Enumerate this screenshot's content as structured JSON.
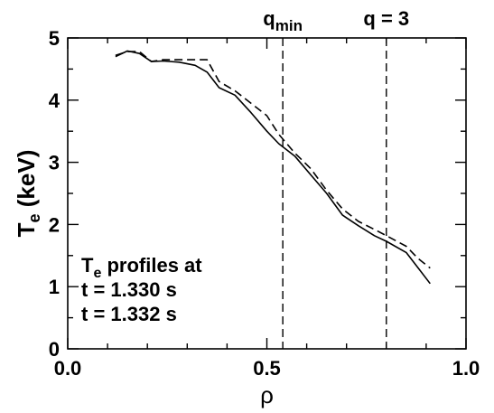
{
  "chart_data": {
    "type": "line",
    "xlabel": "ρ",
    "ylabel": {
      "main": "T",
      "sub": "e",
      "rest": " (keV)"
    },
    "xlim": [
      0.0,
      1.0
    ],
    "ylim": [
      0,
      5
    ],
    "x_ticks": [
      "0.0",
      "0.5",
      "1.0"
    ],
    "y_ticks": [
      "0",
      "1",
      "2",
      "3",
      "4",
      "5"
    ],
    "grid": false,
    "annotation": {
      "title_main": "T",
      "title_sub": "e",
      "title_rest": " profiles at",
      "line1": "t = 1.330 s",
      "line2": "t = 1.332 s"
    },
    "series": [
      {
        "name": "t = 1.330 s",
        "style": "solid",
        "color": "#000000",
        "x": [
          0.12,
          0.15,
          0.18,
          0.21,
          0.24,
          0.28,
          0.32,
          0.35,
          0.38,
          0.42,
          0.46,
          0.5,
          0.53,
          0.57,
          0.61,
          0.65,
          0.69,
          0.73,
          0.77,
          0.8,
          0.85,
          0.88,
          0.91
        ],
        "y": [
          4.7,
          4.79,
          4.75,
          4.62,
          4.63,
          4.61,
          4.56,
          4.45,
          4.2,
          4.08,
          3.8,
          3.5,
          3.3,
          3.1,
          2.8,
          2.5,
          2.15,
          1.98,
          1.82,
          1.73,
          1.55,
          1.3,
          1.05
        ]
      },
      {
        "name": "t = 1.332 s",
        "style": "dashed",
        "color": "#000000",
        "x": [
          0.12,
          0.15,
          0.18,
          0.21,
          0.24,
          0.28,
          0.32,
          0.35,
          0.38,
          0.42,
          0.46,
          0.5,
          0.53,
          0.57,
          0.61,
          0.65,
          0.69,
          0.73,
          0.77,
          0.8,
          0.85,
          0.88,
          0.91
        ],
        "y": [
          4.72,
          4.78,
          4.78,
          4.62,
          4.65,
          4.65,
          4.65,
          4.65,
          4.3,
          4.15,
          3.95,
          3.75,
          3.45,
          3.15,
          2.9,
          2.55,
          2.25,
          2.05,
          1.92,
          1.82,
          1.65,
          1.45,
          1.3
        ]
      }
    ],
    "vlines": [
      {
        "x": 0.54,
        "style": "dashed",
        "label_main": "q",
        "label_sub": "min"
      },
      {
        "x": 0.8,
        "style": "dashed",
        "label_main": "q = 3",
        "label_sub": ""
      }
    ]
  }
}
